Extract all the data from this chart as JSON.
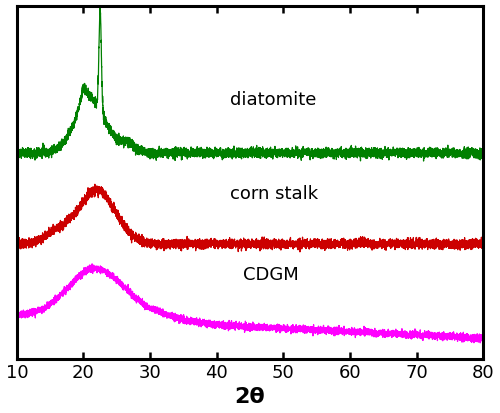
{
  "xlabel": "2θ",
  "xlabel_fontsize": 16,
  "xlabel_fontweight": "bold",
  "xlim": [
    10,
    80
  ],
  "xticks": [
    10,
    20,
    30,
    40,
    50,
    60,
    70,
    80
  ],
  "colors": {
    "diatomite": "#008000",
    "corn_stalk": "#cc0000",
    "cdgm": "#ff00ff"
  },
  "labels": {
    "diatomite": "diatomite",
    "corn_stalk": "corn stalk",
    "cdgm": "CDGM"
  },
  "background_color": "#ffffff",
  "tick_fontsize": 13,
  "label_fontsize": 13,
  "linewidth": 0.9
}
